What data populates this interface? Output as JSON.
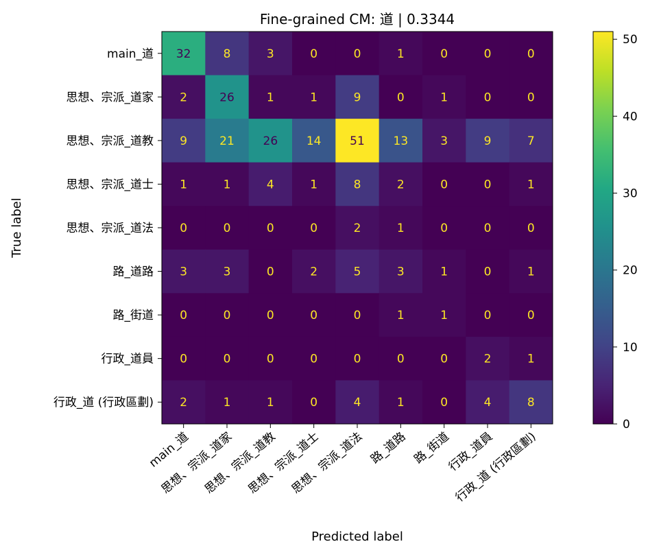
{
  "chart_data": {
    "type": "heatmap",
    "title": "Fine-grained CM: 道 | 0.3344",
    "xlabel": "Predicted label",
    "ylabel": "True label",
    "x_tick_labels": [
      "main_道",
      "思想、宗派_道家",
      "思想、宗派_道教",
      "思想、宗派_道士",
      "思想、宗派_道法",
      "路_道路",
      "路_街道",
      "行政_道員",
      "行政_道 (行政區劃)"
    ],
    "y_tick_labels": [
      "main_道",
      "思想、宗派_道家",
      "思想、宗派_道教",
      "思想、宗派_道士",
      "思想、宗派_道法",
      "路_道路",
      "路_街道",
      "行政_道員",
      "行政_道 (行政區劃)"
    ],
    "matrix": [
      [
        32,
        8,
        3,
        0,
        0,
        1,
        0,
        0,
        0
      ],
      [
        2,
        26,
        1,
        1,
        9,
        0,
        1,
        0,
        0
      ],
      [
        9,
        21,
        26,
        14,
        51,
        13,
        3,
        9,
        7
      ],
      [
        1,
        1,
        4,
        1,
        8,
        2,
        0,
        0,
        1
      ],
      [
        0,
        0,
        0,
        0,
        2,
        1,
        0,
        0,
        0
      ],
      [
        3,
        3,
        0,
        2,
        5,
        3,
        1,
        0,
        1
      ],
      [
        0,
        0,
        0,
        0,
        0,
        1,
        1,
        0,
        0
      ],
      [
        0,
        0,
        0,
        0,
        0,
        0,
        0,
        2,
        1
      ],
      [
        2,
        1,
        1,
        0,
        4,
        1,
        0,
        4,
        8
      ]
    ],
    "colormap": "viridis",
    "vmin": 0,
    "vmax": 51,
    "colorbar_ticks": [
      0,
      10,
      20,
      30,
      40,
      50
    ],
    "grid": false
  }
}
